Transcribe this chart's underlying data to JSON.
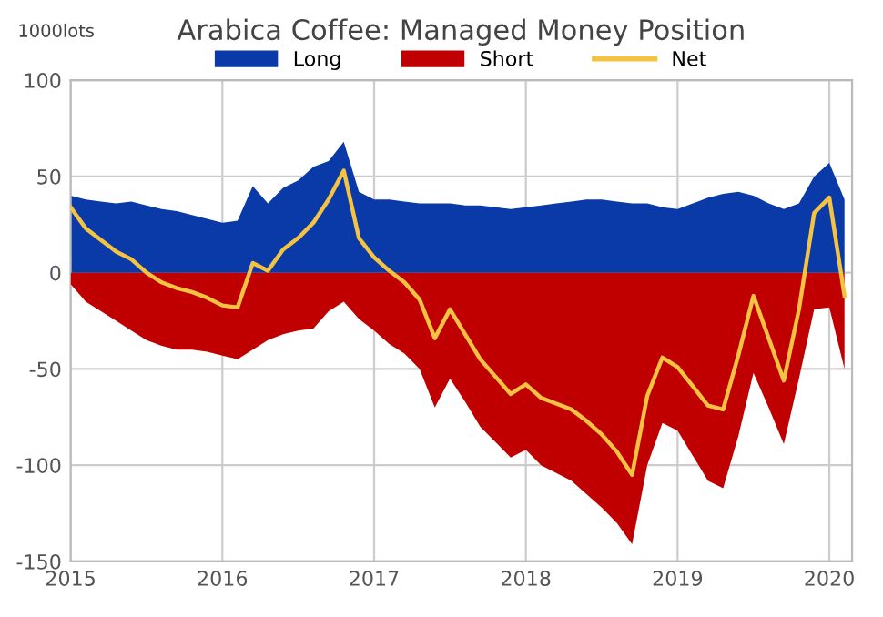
{
  "chart_data": {
    "type": "area",
    "title": "Arabica Coffee: Managed Money Position",
    "ylabel": "1000lots",
    "x": [
      2015.0,
      2015.1,
      2015.2,
      2015.3,
      2015.4,
      2015.5,
      2015.6,
      2015.7,
      2015.8,
      2015.9,
      2016.0,
      2016.1,
      2016.2,
      2016.3,
      2016.4,
      2016.5,
      2016.6,
      2016.7,
      2016.8,
      2016.9,
      2017.0,
      2017.1,
      2017.2,
      2017.3,
      2017.4,
      2017.5,
      2017.6,
      2017.7,
      2017.8,
      2017.9,
      2018.0,
      2018.1,
      2018.2,
      2018.3,
      2018.4,
      2018.5,
      2018.6,
      2018.7,
      2018.8,
      2018.9,
      2019.0,
      2019.1,
      2019.2,
      2019.3,
      2019.4,
      2019.5,
      2019.6,
      2019.7,
      2019.8,
      2019.9,
      2020.0,
      2020.1
    ],
    "series": [
      {
        "name": "Long",
        "color": "#0a3aa8",
        "values": [
          40,
          38,
          37,
          36,
          37,
          35,
          33,
          32,
          30,
          28,
          26,
          27,
          45,
          36,
          44,
          48,
          55,
          58,
          68,
          42,
          38,
          38,
          37,
          36,
          36,
          36,
          35,
          35,
          34,
          33,
          34,
          35,
          36,
          37,
          38,
          38,
          37,
          36,
          36,
          34,
          33,
          36,
          39,
          41,
          42,
          40,
          36,
          33,
          36,
          50,
          57,
          38
        ]
      },
      {
        "name": "Short",
        "color": "#c00000",
        "values": [
          -6,
          -15,
          -20,
          -25,
          -30,
          -35,
          -38,
          -40,
          -40,
          -41,
          -43,
          -45,
          -40,
          -35,
          -32,
          -30,
          -29,
          -20,
          -15,
          -24,
          -30,
          -37,
          -42,
          -50,
          -70,
          -55,
          -67,
          -80,
          -88,
          -96,
          -92,
          -100,
          -104,
          -108,
          -115,
          -122,
          -130,
          -141,
          -100,
          -78,
          -82,
          -95,
          -108,
          -112,
          -85,
          -52,
          -70,
          -89,
          -55,
          -19,
          -18,
          -50
        ]
      },
      {
        "name": "Net",
        "type": "line",
        "color": "#f5c342",
        "values": [
          34,
          23,
          17,
          11,
          7,
          0,
          -5,
          -8,
          -10,
          -13,
          -17,
          -18,
          5,
          1,
          12,
          18,
          26,
          38,
          53,
          18,
          8,
          1,
          -5,
          -14,
          -34,
          -19,
          -32,
          -45,
          -54,
          -63,
          -58,
          -65,
          -68,
          -71,
          -77,
          -84,
          -93,
          -105,
          -64,
          -44,
          -49,
          -59,
          -69,
          -71,
          -43,
          -12,
          -34,
          -56,
          -19,
          31,
          39,
          -12
        ]
      }
    ],
    "xlim": [
      2015,
      2020.15
    ],
    "xticks": [
      2015,
      2016,
      2017,
      2018,
      2019,
      2020
    ],
    "ylim": [
      -150,
      100
    ],
    "yticks": [
      -150,
      -100,
      -50,
      0,
      50,
      100
    ],
    "grid": true,
    "legend": "top",
    "marker": "none",
    "line_style": "solid"
  }
}
